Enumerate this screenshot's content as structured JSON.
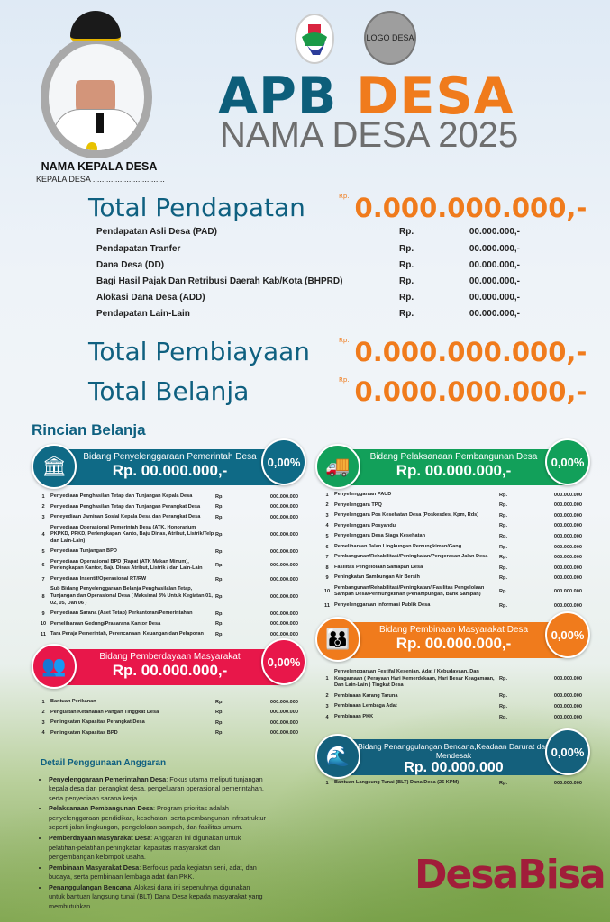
{
  "head": {
    "name": "NAMA KEPALA DESA",
    "role": "KEPALA DESA ................................",
    "logo_desa": "LOGO DESA",
    "title_a": "APB",
    "title_b": "DESA",
    "subtitle": "NAMA DESA 2025"
  },
  "pendapatan": {
    "label": "Total Pendapatan",
    "rp": "Rp.",
    "value": "0.000.000.000,-",
    "items": [
      {
        "label": "Pendapatan Asli Desa (PAD)",
        "rp": "Rp.",
        "value": "00.000.000,-"
      },
      {
        "label": "Pendapatan Tranfer",
        "rp": "Rp.",
        "value": "00.000.000,-"
      },
      {
        "label": "Dana Desa (DD)",
        "rp": "Rp.",
        "value": "00.000.000,-"
      },
      {
        "label": "Bagi Hasil Pajak Dan Retribusi Daerah Kab/Kota (BHPRD)",
        "rp": "Rp.",
        "value": "00.000.000,-"
      },
      {
        "label": "Alokasi Dana Desa (ADD)",
        "rp": "Rp.",
        "value": "00.000.000,-"
      },
      {
        "label": "Pendapatan Lain-Lain",
        "rp": "Rp.",
        "value": "00.000.000,-"
      }
    ]
  },
  "pembiayaan": {
    "label": "Total Pembiayaan",
    "rp": "Rp.",
    "value": "0.000.000.000,-"
  },
  "belanja": {
    "label": "Total Belanja",
    "rp": "Rp.",
    "value": "0.000.000.000,-"
  },
  "rincian_title": "Rincian Belanja",
  "sections": [
    {
      "title": "Bidang Penyelenggaraan Pemerintah Desa",
      "amount": "Rp. 00.000.000,-",
      "percent": "0,00%",
      "color": "#0f6a86",
      "icon": "bank-icon",
      "glyph": "🏛",
      "items": [
        {
          "no": "1",
          "label": "Penyediaan Penghasilan Tetap dan Tunjangan Kepala Desa",
          "rp": "Rp.",
          "value": "000.000.000"
        },
        {
          "no": "2",
          "label": "Penyediaan Penghasilan Tetap dan Tunjangan Perangkat Desa",
          "rp": "Rp.",
          "value": "000.000.000"
        },
        {
          "no": "3",
          "label": "Peneyediaan Jaminan Sosial Kepala Desa dan Perangkat Desa",
          "rp": "Rp.",
          "value": "000.000.000"
        },
        {
          "no": "4",
          "label": "Penyediaan Operasional Pemerintah Desa (ATK, Honorarium PKPKD, PPKD, Perlengkapan Kanto, Baju Dinas, Atribut, Listrik/Telp dan Lain-Lain)",
          "rp": "Rp.",
          "value": "000.000.000"
        },
        {
          "no": "5",
          "label": "Penyediaan Tunjangan BPD",
          "rp": "Rp.",
          "value": "000.000.000"
        },
        {
          "no": "6",
          "label": "Penyediaan Operasional BPD (Rapat (ATK Makan Minum), Perlengkapan Kantor, Baju Dinas Atribut, Listrik / dan Lain-Lain",
          "rp": "Rp.",
          "value": "000.000.000"
        },
        {
          "no": "7",
          "label": "Penyediaan Insentif/Operasional RT/RW",
          "rp": "Rp.",
          "value": "000.000.000"
        },
        {
          "no": "8",
          "label": "Sub Bidang Penyelenggaraan Belanja Penghasilalan Tetap, Tunjangan dan Operasional Desa ( Maksimal 3% Untuk Kegiatan 01, 02, 05, Dan 06 )",
          "rp": "Rp.",
          "value": "000.000.000"
        },
        {
          "no": "9",
          "label": "Penyediaan Sarana (Aset Tetap) Perkantoran/Pemerintahan",
          "rp": "Rp.",
          "value": "000.000.000"
        },
        {
          "no": "10",
          "label": "Pemeliharaan Gedung/Prasarana Kantor Desa",
          "rp": "Rp.",
          "value": "000.000.000"
        },
        {
          "no": "11",
          "label": "Tara Peraja Pemerintah, Perencanaan, Keuangan dan Pelaporan",
          "rp": "Rp.",
          "value": "000.000.000"
        }
      ]
    },
    {
      "title": "Bidang Pelaksanaan Pembangunan Desa",
      "amount": "Rp. 00.000.000,-",
      "percent": "0,00%",
      "color": "#12a05a",
      "icon": "truck-icon",
      "glyph": "🚚",
      "items": [
        {
          "no": "1",
          "label": "Penyelenggaraan PAUD",
          "rp": "Rp.",
          "value": "000.000.000"
        },
        {
          "no": "2",
          "label": "Penyelenggara TPQ",
          "rp": "Rp.",
          "value": "000.000.000"
        },
        {
          "no": "3",
          "label": "Penyelenggara Pos Kesehatan Desa (Poskesdes, Kpm, Rds)",
          "rp": "Rp.",
          "value": "000.000.000"
        },
        {
          "no": "4",
          "label": "Penyelenggara Posyandu",
          "rp": "Rp.",
          "value": "000.000.000"
        },
        {
          "no": "5",
          "label": "Penyelenggara Desa Siaga Kesehatan",
          "rp": "Rp.",
          "value": "000.000.000"
        },
        {
          "no": "6",
          "label": "Pemeliharaan Jalan Lingkungan Pemungkiman/Gang",
          "rp": "Rp.",
          "value": "000.000.000"
        },
        {
          "no": "7",
          "label": "Pembangunan/Rehabilitasi/Peningkatan/Pengerasan Jalan Desa",
          "rp": "Rp.",
          "value": "000.000.000"
        },
        {
          "no": "8",
          "label": "Fasilitas Pengelolaan Samapah Desa",
          "rp": "Rp.",
          "value": "000.000.000"
        },
        {
          "no": "9",
          "label": "Peningkatan Sambungan Air Bersih",
          "rp": "Rp.",
          "value": "000.000.000"
        },
        {
          "no": "10",
          "label": "Pembangunan/Rehabilitasi/Peningkatan/ Fasilitas Pengelolaan Sampah Desa/Permungkiman (Penampungan, Bank Sampah)",
          "rp": "Rp.",
          "value": "000.000.000"
        },
        {
          "no": "11",
          "label": "Penyelenggaraan Informasi Publik Desa",
          "rp": "Rp.",
          "value": "000.000.000"
        }
      ]
    },
    {
      "title": "Bidang Pemberdayaan Masyarakat",
      "amount": "Rp. 00.000.000,-",
      "percent": "0,00%",
      "color": "#e8174a",
      "icon": "people-icon",
      "glyph": "👥",
      "items": [
        {
          "no": "1",
          "label": "Bantuan Perikanan",
          "rp": "Rp.",
          "value": "000.000.000"
        },
        {
          "no": "2",
          "label": "Penguatan Ketahanan Pangan Tinggkat Desa",
          "rp": "Rp.",
          "value": "000.000.000"
        },
        {
          "no": "3",
          "label": "Peningkatan Kapasitas Perangkat Desa",
          "rp": "Rp.",
          "value": "000.000.000"
        },
        {
          "no": "4",
          "label": "Peningkatan Kapasitas BPD",
          "rp": "Rp.",
          "value": "000.000.000"
        }
      ]
    },
    {
      "title": "Bidang Pembinaan Masyarakat Desa",
      "amount": "Rp. 00.000.000,-",
      "percent": "0,00%",
      "color": "#f07b1c",
      "icon": "group-icon",
      "glyph": "👪",
      "items": [
        {
          "no": "1",
          "label": "Penyelenggaraan Festifal Kesenian, Adat / Kebudayaan, Dan Keagamaan ( Perayaan Hari Kemerdekaan, Hari Besar Keagamaan, Dan Lain-Lain ) Tingkat Desa",
          "rp": "Rp.",
          "value": "000.000.000"
        },
        {
          "no": "2",
          "label": "Pembinaan Karang Taruna",
          "rp": "Rp.",
          "value": "000.000.000"
        },
        {
          "no": "3",
          "label": "Pembinaan Lembaga Adat",
          "rp": "Rp.",
          "value": "000.000.000"
        },
        {
          "no": "4",
          "label": "Pembinaan PKK",
          "rp": "Rp.",
          "value": "000.000.000"
        }
      ]
    },
    {
      "title": "Bidang Penanggulangan Bencana,Keadaan Darurat dan Mendesak",
      "amount": "Rp. 00.000.000",
      "percent": "0,00%",
      "color": "#14607c",
      "icon": "flood-icon",
      "glyph": "🌊",
      "items": [
        {
          "no": "1",
          "label": "Bantuan Langsung Tunai (BLT) Dana Desa (26 KPM)",
          "rp": "Rp.",
          "value": "000.000.000"
        }
      ]
    }
  ],
  "detail": {
    "title": "Detail Penggunaan Anggaran",
    "items": [
      {
        "bold": "Penyelenggaraan Pemerintahan Desa",
        "text": ": Fokus utama meliputi tunjangan kepala desa dan perangkat desa, pengeluaran operasional pemerintahan, serta penyediaan sarana kerja."
      },
      {
        "bold": "Pelaksanaan Pembangunan Desa",
        "text": ": Program prioritas adalah penyelenggaraan pendidikan, kesehatan, serta pembangunan infrastruktur seperti jalan lingkungan, pengelolaan sampah, dan fasilitas umum."
      },
      {
        "bold": "Pemberdayaan Masyarakat Desa",
        "text": ": Anggaran ini digunakan untuk pelatihan-pelatihan peningkatan kapasitas masyarakat dan pengembangan kelompok usaha."
      },
      {
        "bold": "Pembinaan Masyarakat Desa",
        "text": ": Berfokus pada kegiatan seni, adat, dan budaya, serta pembinaan lembaga adat dan PKK."
      },
      {
        "bold": "Penanggulangan Bencana",
        "text": ": Alokasi dana ini sepenuhnya digunakan untuk bantuan langsung tunai (BLT) Dana Desa kepada masyarakat yang membutuhkan."
      }
    ]
  },
  "brand": "DesaBisa"
}
